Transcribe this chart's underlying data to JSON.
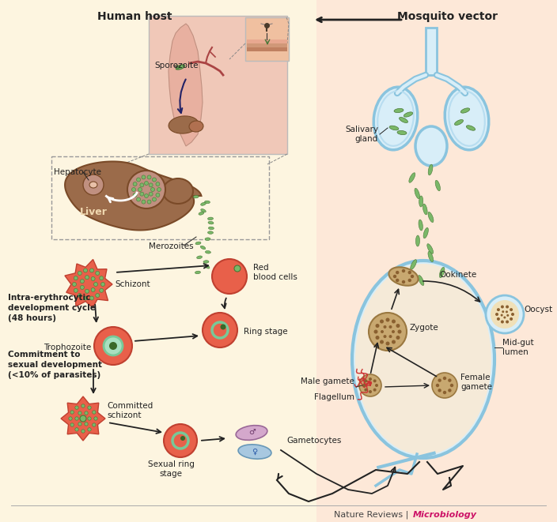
{
  "background_left": "#fdf5e0",
  "background_right": "#fde8d8",
  "background_inset": "#f0c8b8",
  "text_human_host": "Human host",
  "text_mosquito_vector": "Mosquito vector",
  "text_sporozoite": "Sporozoite",
  "text_hepatocyte": "Hepatocyte",
  "text_liver": "Liver",
  "text_merozoites": "Merozoites",
  "text_red_blood_cells": "Red\nblood cells",
  "text_schizont": "Schizont",
  "text_ring_stage": "Ring stage",
  "text_trophozoite": "Trophozoite",
  "text_intra": "Intra-erythrocytic\ndevelopment cycle\n(48 hours)",
  "text_commitment": "Commitment to\nsexual development\n(<10% of parasites)",
  "text_committed_schizont": "Committed\nschizont",
  "text_sexual_ring": "Sexual ring\nstage",
  "text_gametocytes": "Gametocytes",
  "text_salivary_gland": "Salivary\ngland",
  "text_ookinete": "Ookinete",
  "text_oocyst": "Oocyst",
  "text_mid_gut": "Mid-gut\nlumen",
  "text_zygote": "Zygote",
  "text_male_gamete": "Male gamete",
  "text_female_gamete": "Female\ngamete",
  "text_flagellum": "Flagellum",
  "text_nature": "Nature Reviews",
  "text_micro": "Microbiology",
  "color_red_cell": "#e8604a",
  "color_red_cell_edge": "#c04030",
  "color_liver_fill": "#9b6b4a",
  "color_liver_dark": "#7a4a28",
  "color_green_parasite": "#7ab868",
  "color_green_dark": "#4a7838",
  "color_blue_fill": "#d8eef8",
  "color_blue_outline": "#8ac4de",
  "color_tan_fill": "#c8a870",
  "color_tan_dark": "#9a7840",
  "color_teal_inner": "#78c898",
  "color_arrow": "#222222",
  "color_text_main": "#222222",
  "color_micro_text": "#cc1166",
  "color_nature_text": "#444444",
  "fig_width": 7.04,
  "fig_height": 6.61,
  "dpi": 100
}
